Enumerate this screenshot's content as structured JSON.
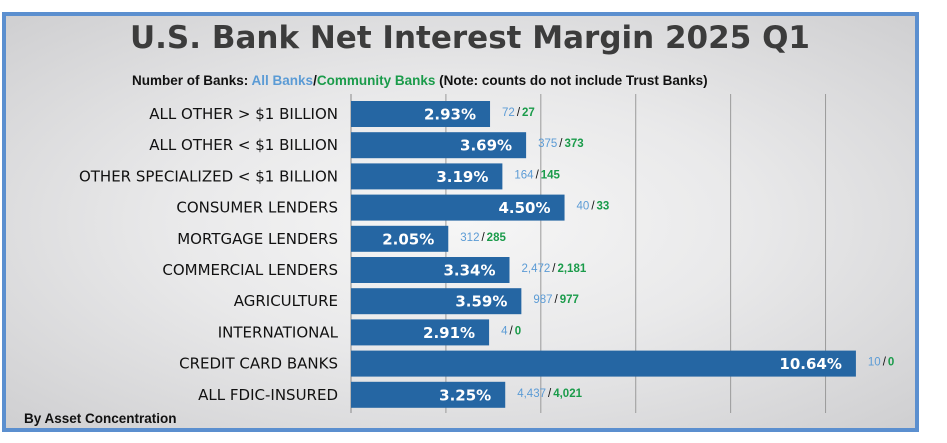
{
  "chart_data": {
    "type": "bar",
    "orientation": "horizontal",
    "title": "U.S. Bank Net Interest Margin 2025 Q1",
    "subtitle": {
      "prefix": "Number of Banks: ",
      "all_banks": "All Banks",
      "separator": "/",
      "community_banks": "Community Banks",
      "note": " (Note: counts do not include Trust Banks)"
    },
    "footnote": "By Asset Concentration",
    "categories": [
      "ALL OTHER > $1 BILLION",
      "ALL OTHER < $1 BILLION",
      "OTHER SPECIALIZED < $1 BILLION",
      "CONSUMER LENDERS",
      "MORTGAGE LENDERS",
      "COMMERCIAL LENDERS",
      "AGRICULTURE",
      "INTERNATIONAL",
      "CREDIT CARD BANKS",
      "ALL FDIC-INSURED"
    ],
    "values": [
      2.93,
      3.69,
      3.19,
      4.5,
      2.05,
      3.34,
      3.59,
      2.91,
      10.64,
      3.25
    ],
    "value_labels": [
      "2.93%",
      "3.69%",
      "3.19%",
      "4.50%",
      "2.05%",
      "3.34%",
      "3.59%",
      "2.91%",
      "10.64%",
      "3.25%"
    ],
    "counts_all": [
      "72",
      "375",
      "164",
      "40",
      "312",
      "2,472",
      "987",
      "4",
      "10",
      "4,437"
    ],
    "counts_community": [
      "27",
      "373",
      "145",
      "33",
      "285",
      "2,181",
      "977",
      "0",
      "0",
      "4,021"
    ],
    "count_separator": "/",
    "xlim": [
      0,
      11
    ],
    "grid": true,
    "colors": {
      "bar": "#2566a3",
      "all_banks": "#5b9bd5",
      "community_banks": "#1a9b4a",
      "frame": "#5b8fcf"
    }
  }
}
